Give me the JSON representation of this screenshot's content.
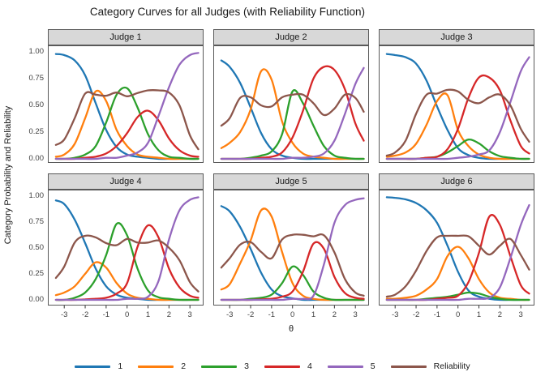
{
  "title": "Category Curves for all Judges (with Reliability Function)",
  "y_axis": {
    "label": "Category Probability and Reliability",
    "ticks": [
      "1.00",
      "0.75",
      "0.50",
      "0.25",
      "0.00"
    ],
    "tick_values": [
      1.0,
      0.75,
      0.5,
      0.25,
      0.0
    ]
  },
  "x_axis": {
    "label": "θ",
    "ticks": [
      "-3",
      "-2",
      "-1",
      "0",
      "1",
      "2",
      "3"
    ],
    "tick_values": [
      -3,
      -2,
      -1,
      0,
      1,
      2,
      3
    ]
  },
  "legend": [
    {
      "label": "1",
      "color": "#1f77b4"
    },
    {
      "label": "2",
      "color": "#ff7f0e"
    },
    {
      "label": "3",
      "color": "#2ca02c"
    },
    {
      "label": "4",
      "color": "#d62728"
    },
    {
      "label": "5",
      "color": "#9467bd"
    },
    {
      "label": "Reliability",
      "color": "#8c564b"
    }
  ],
  "chart_data": {
    "type": "line",
    "title": "Category Curves for all Judges (with Reliability Function)",
    "xlabel": "θ",
    "ylabel": "Category Probability and Reliability",
    "xlim": [
      -3.75,
      3.75
    ],
    "ylim": [
      0,
      1
    ],
    "grid": false,
    "legend_position": "bottom",
    "x": [
      -3.4,
      -3,
      -2.5,
      -2,
      -1.5,
      -1,
      -0.5,
      0,
      0.5,
      1,
      1.5,
      2,
      2.5,
      3,
      3.4
    ],
    "panels": [
      {
        "title": "Judge 1",
        "series": [
          {
            "name": "1",
            "values": [
              0.98,
              0.97,
              0.92,
              0.78,
              0.52,
              0.27,
              0.11,
              0.04,
              0.02,
              0.01,
              0,
              0,
              0,
              0,
              0
            ]
          },
          {
            "name": "2",
            "values": [
              0.02,
              0.04,
              0.14,
              0.38,
              0.63,
              0.54,
              0.27,
              0.12,
              0.04,
              0.02,
              0.01,
              0,
              0,
              0,
              0
            ]
          },
          {
            "name": "3",
            "values": [
              0,
              0,
              0.01,
              0.04,
              0.12,
              0.34,
              0.6,
              0.66,
              0.48,
              0.23,
              0.08,
              0.02,
              0.01,
              0,
              0
            ]
          },
          {
            "name": "4",
            "values": [
              0,
              0,
              0,
              0.01,
              0.02,
              0.05,
              0.12,
              0.24,
              0.39,
              0.45,
              0.36,
              0.19,
              0.08,
              0.03,
              0.02
            ]
          },
          {
            "name": "5",
            "values": [
              0,
              0,
              0,
              0,
              0,
              0.01,
              0.01,
              0.03,
              0.06,
              0.15,
              0.4,
              0.67,
              0.88,
              0.97,
              0.99
            ]
          },
          {
            "name": "Reliability",
            "values": [
              0.13,
              0.18,
              0.38,
              0.61,
              0.6,
              0.59,
              0.62,
              0.585,
              0.615,
              0.64,
              0.64,
              0.62,
              0.5,
              0.22,
              0.09
            ]
          }
        ]
      },
      {
        "title": "Judge 2",
        "series": [
          {
            "name": "1",
            "values": [
              0.92,
              0.86,
              0.71,
              0.48,
              0.24,
              0.09,
              0.03,
              0.01,
              0,
              0,
              0,
              0,
              0,
              0,
              0
            ]
          },
          {
            "name": "2",
            "values": [
              0.1,
              0.15,
              0.25,
              0.46,
              0.82,
              0.74,
              0.35,
              0.15,
              0.05,
              0.02,
              0.01,
              0,
              0,
              0,
              0
            ]
          },
          {
            "name": "3",
            "values": [
              0,
              0,
              0,
              0.01,
              0.03,
              0.07,
              0.23,
              0.63,
              0.52,
              0.31,
              0.12,
              0.03,
              0.01,
              0,
              0
            ]
          },
          {
            "name": "4",
            "values": [
              0,
              0,
              0,
              0,
              0.01,
              0.02,
              0.06,
              0.2,
              0.45,
              0.75,
              0.86,
              0.83,
              0.65,
              0.33,
              0.17
            ]
          },
          {
            "name": "5",
            "values": [
              0,
              0,
              0,
              0,
              0,
              0,
              0,
              0.01,
              0.01,
              0.02,
              0.05,
              0.17,
              0.42,
              0.7,
              0.85
            ]
          },
          {
            "name": "Reliability",
            "values": [
              0.31,
              0.38,
              0.57,
              0.575,
              0.5,
              0.49,
              0.575,
              0.6,
              0.6,
              0.52,
              0.41,
              0.47,
              0.6,
              0.57,
              0.44
            ]
          }
        ]
      },
      {
        "title": "Judge 3",
        "series": [
          {
            "name": "1",
            "values": [
              0.98,
              0.97,
              0.95,
              0.89,
              0.73,
              0.49,
              0.27,
              0.1,
              0.035,
              0.01,
              0,
              0,
              0,
              0,
              0
            ]
          },
          {
            "name": "2",
            "values": [
              0.02,
              0.03,
              0.06,
              0.14,
              0.32,
              0.54,
              0.595,
              0.27,
              0.12,
              0.04,
              0.01,
              0,
              0,
              0,
              0
            ]
          },
          {
            "name": "3",
            "values": [
              0,
              0,
              0,
              0,
              0.01,
              0.02,
              0.06,
              0.12,
              0.18,
              0.145,
              0.07,
              0.025,
              0.01,
              0,
              0
            ]
          },
          {
            "name": "4",
            "values": [
              0,
              0,
              0,
              0,
              0.01,
              0.02,
              0.09,
              0.28,
              0.57,
              0.76,
              0.76,
              0.64,
              0.36,
              0.12,
              0.05
            ]
          },
          {
            "name": "5",
            "values": [
              0,
              0,
              0,
              0,
              0,
              0,
              0,
              0.01,
              0.02,
              0.04,
              0.08,
              0.25,
              0.53,
              0.82,
              0.95
            ]
          },
          {
            "name": "Reliability",
            "values": [
              0.03,
              0.06,
              0.17,
              0.42,
              0.6,
              0.61,
              0.645,
              0.63,
              0.55,
              0.52,
              0.575,
              0.6,
              0.5,
              0.28,
              0.16
            ]
          }
        ]
      },
      {
        "title": "Judge 4",
        "series": [
          {
            "name": "1",
            "values": [
              0.955,
              0.92,
              0.77,
              0.545,
              0.3,
              0.13,
              0.05,
              0.02,
              0.01,
              0,
              0,
              0,
              0,
              0,
              0
            ]
          },
          {
            "name": "2",
            "values": [
              0.045,
              0.07,
              0.13,
              0.25,
              0.36,
              0.31,
              0.16,
              0.06,
              0.02,
              0.01,
              0,
              0,
              0,
              0,
              0
            ]
          },
          {
            "name": "3",
            "values": [
              0,
              0,
              0.02,
              0.07,
              0.2,
              0.43,
              0.73,
              0.62,
              0.3,
              0.09,
              0.025,
              0.01,
              0,
              0,
              0
            ]
          },
          {
            "name": "4",
            "values": [
              0,
              0,
              0,
              0.005,
              0.01,
              0.02,
              0.06,
              0.16,
              0.51,
              0.715,
              0.6,
              0.3,
              0.12,
              0.04,
              0.02
            ]
          },
          {
            "name": "5",
            "values": [
              0,
              0,
              0,
              0,
              0,
              0,
              0,
              0.01,
              0.01,
              0.03,
              0.18,
              0.58,
              0.86,
              0.96,
              0.985
            ]
          },
          {
            "name": "Reliability",
            "values": [
              0.21,
              0.32,
              0.55,
              0.615,
              0.6,
              0.545,
              0.525,
              0.585,
              0.55,
              0.55,
              0.57,
              0.5,
              0.38,
              0.17,
              0.08
            ]
          }
        ]
      },
      {
        "title": "Judge 5",
        "series": [
          {
            "name": "1",
            "values": [
              0.9,
              0.85,
              0.7,
              0.49,
              0.26,
              0.1,
              0.035,
              0.015,
              0,
              0,
              0,
              0,
              0,
              0,
              0
            ]
          },
          {
            "name": "2",
            "values": [
              0.1,
              0.15,
              0.35,
              0.57,
              0.86,
              0.8,
              0.46,
              0.16,
              0.04,
              0.01,
              0,
              0,
              0,
              0,
              0
            ]
          },
          {
            "name": "3",
            "values": [
              0,
              0,
              0,
              0.01,
              0.02,
              0.05,
              0.16,
              0.32,
              0.24,
              0.08,
              0.02,
              0,
              0,
              0,
              0
            ]
          },
          {
            "name": "4",
            "values": [
              0,
              0,
              0,
              0,
              0.005,
              0.01,
              0.03,
              0.08,
              0.27,
              0.54,
              0.49,
              0.22,
              0.065,
              0.02,
              0.01
            ]
          },
          {
            "name": "5",
            "values": [
              0,
              0,
              0,
              0,
              0,
              0,
              0,
              0.01,
              0.01,
              0.04,
              0.34,
              0.74,
              0.91,
              0.96,
              0.975
            ]
          },
          {
            "name": "Reliability",
            "values": [
              0.31,
              0.4,
              0.53,
              0.555,
              0.46,
              0.4,
              0.58,
              0.625,
              0.625,
              0.61,
              0.62,
              0.455,
              0.2,
              0.07,
              0.04
            ]
          }
        ]
      },
      {
        "title": "Judge 6",
        "series": [
          {
            "name": "1",
            "values": [
              0.985,
              0.98,
              0.965,
              0.93,
              0.86,
              0.74,
              0.52,
              0.27,
              0.09,
              0.03,
              0.01,
              0,
              0,
              0,
              0
            ]
          },
          {
            "name": "2",
            "values": [
              0.01,
              0.01,
              0.02,
              0.04,
              0.1,
              0.2,
              0.42,
              0.51,
              0.4,
              0.2,
              0.07,
              0.02,
              0.01,
              0,
              0
            ]
          },
          {
            "name": "3",
            "values": [
              0,
              0,
              0,
              0,
              0.01,
              0.02,
              0.03,
              0.05,
              0.07,
              0.06,
              0.03,
              0.01,
              0,
              0,
              0
            ]
          },
          {
            "name": "4",
            "values": [
              0,
              0,
              0,
              0,
              0,
              0.01,
              0.02,
              0.04,
              0.17,
              0.45,
              0.8,
              0.72,
              0.42,
              0.14,
              0.06
            ]
          },
          {
            "name": "5",
            "values": [
              0,
              0,
              0,
              0,
              0,
              0,
              0,
              0,
              0.01,
              0.01,
              0.02,
              0.12,
              0.4,
              0.72,
              0.91
            ]
          },
          {
            "name": "Reliability",
            "values": [
              0.03,
              0.05,
              0.13,
              0.28,
              0.47,
              0.6,
              0.615,
              0.615,
              0.61,
              0.52,
              0.435,
              0.52,
              0.585,
              0.43,
              0.29
            ]
          }
        ]
      }
    ]
  }
}
